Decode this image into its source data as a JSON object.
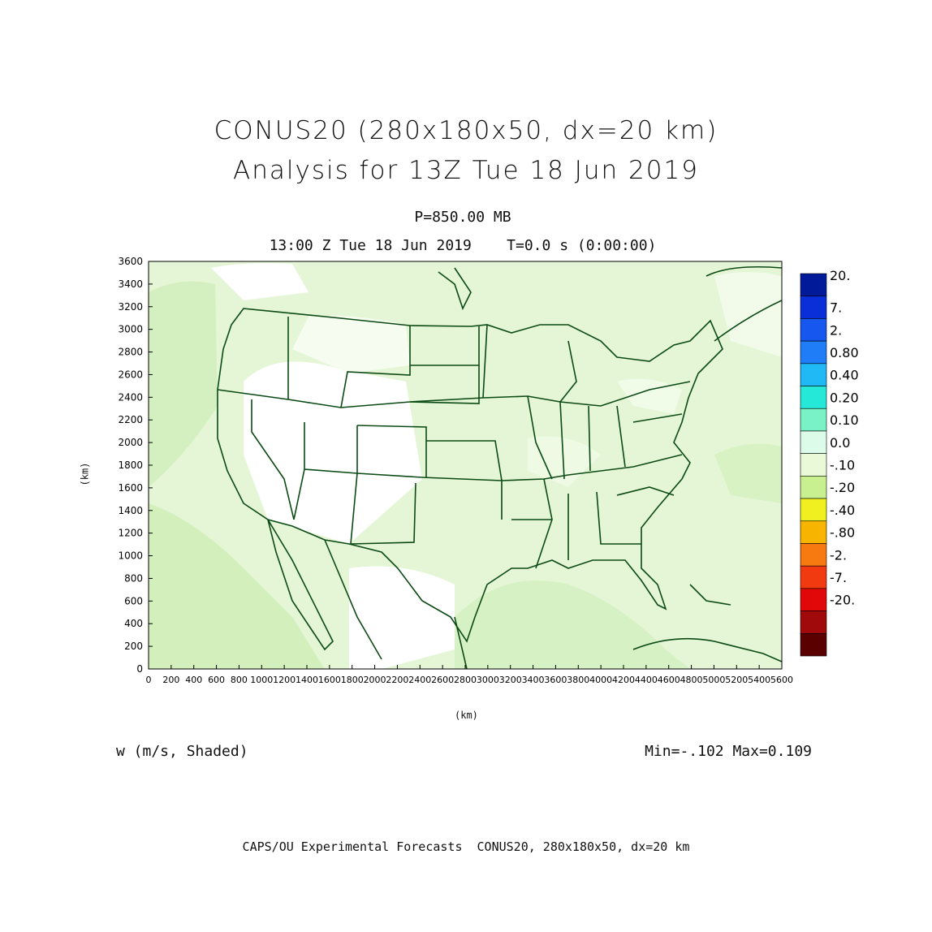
{
  "figure": {
    "title_line1": "CONUS20 (280x180x50, dx=20 km)",
    "title_line2": "Analysis for 13Z Tue 18 Jun 2019",
    "level": "P=850.00 MB",
    "time": "13:00 Z Tue 18 Jun 2019    T=0.0 s (0:00:00)",
    "variable": "w (m/s, Shaded)",
    "minmax": "Min=-.102 Max=0.109",
    "footer": "CAPS/OU Experimental Forecasts  CONUS20, 280x180x50, dx=20 km"
  },
  "axes": {
    "x_label": "(km)",
    "y_label": "(km)",
    "x_ticks": [
      "0",
      "200",
      "400",
      "600",
      "800",
      "1000",
      "1200",
      "1400",
      "1600",
      "1800",
      "2000",
      "2200",
      "2400",
      "2600",
      "2800",
      "3000",
      "3200",
      "3400",
      "3600",
      "3800",
      "4000",
      "4200",
      "4400",
      "4600",
      "4800",
      "5000",
      "5200",
      "5400",
      "5600"
    ],
    "y_ticks": [
      "0",
      "200",
      "400",
      "600",
      "800",
      "1000",
      "1200",
      "1400",
      "1600",
      "1800",
      "2000",
      "2200",
      "2400",
      "2600",
      "2800",
      "3000",
      "3200",
      "3400",
      "3600"
    ],
    "x_range": [
      0,
      5600
    ],
    "y_range": [
      0,
      3600
    ]
  },
  "colorbar": {
    "labels": [
      "20.",
      "7.",
      "2.",
      "0.80",
      "0.40",
      "0.20",
      "0.10",
      "0.0",
      "-.10",
      "-.20",
      "-.40",
      "-.80",
      "-2.",
      "-7.",
      "-20."
    ],
    "colors": [
      "#001a9a",
      "#0a2fd8",
      "#1657f0",
      "#1e7df7",
      "#20b8f5",
      "#25e8d8",
      "#7af2c8",
      "#dcfbe8",
      "#eaf9d8",
      "#c8ef90",
      "#f0f020",
      "#f7b400",
      "#f77a10",
      "#f23a10",
      "#e00808",
      "#a00a0a",
      "#5a0000"
    ]
  },
  "map_colors": {
    "border": "#0b4a14",
    "field_light": "#e3f6d4",
    "field_mid": "#d2f0bd",
    "field_white": "#ffffff"
  }
}
